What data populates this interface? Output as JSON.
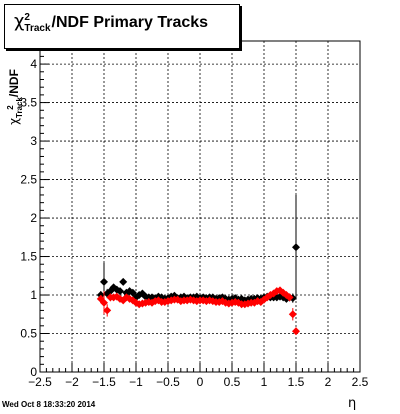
{
  "title": {
    "symbol": "χ",
    "sup": "2",
    "sub": "Track",
    "rest": "/NDF  Primary Tracks"
  },
  "ylabel": {
    "symbol": "χ",
    "sup": "2",
    "sub": "Track",
    "rest": "/NDF"
  },
  "xlabel": "η",
  "timestamp": "Wed Oct  8 18:33:20 2014",
  "colors": {
    "series_black": "#000000",
    "series_red": "#ff0000",
    "grid": "#000000"
  },
  "chart_data": {
    "type": "scatter",
    "xlim": [
      -2.5,
      2.5
    ],
    "ylim": [
      0,
      4.3
    ],
    "grid": true,
    "x_ticks": [
      "−2.5",
      "−2",
      "−1.5",
      "−1",
      "−0.5",
      "0",
      "0.5",
      "1",
      "1.5",
      "2",
      "2.5"
    ],
    "y_ticks": [
      "0",
      "0.5",
      "1",
      "1.5",
      "2",
      "2.5",
      "3",
      "3.5",
      "4"
    ],
    "series": [
      {
        "color": "#000000",
        "marker": "diamond",
        "x": [
          -1.55,
          -1.5,
          -1.45,
          -1.4,
          -1.35,
          -1.3,
          -1.25,
          -1.2,
          -1.15,
          -1.1,
          -1.05,
          -1.0,
          -0.95,
          -0.9,
          -0.85,
          -0.8,
          -0.75,
          -0.7,
          -0.65,
          -0.6,
          -0.55,
          -0.5,
          -0.45,
          -0.4,
          -0.35,
          -0.3,
          -0.25,
          -0.2,
          -0.15,
          -0.1,
          -0.05,
          0.0,
          0.05,
          0.1,
          0.15,
          0.2,
          0.25,
          0.3,
          0.35,
          0.4,
          0.45,
          0.5,
          0.55,
          0.6,
          0.65,
          0.7,
          0.75,
          0.8,
          0.85,
          0.9,
          0.95,
          1.0,
          1.05,
          1.1,
          1.15,
          1.2,
          1.25,
          1.3,
          1.35,
          1.4,
          1.45,
          1.5
        ],
        "y": [
          1.0,
          1.17,
          1.02,
          1.05,
          1.1,
          1.07,
          1.05,
          1.17,
          1.03,
          1.05,
          1.03,
          0.97,
          1.0,
          1.02,
          0.98,
          0.97,
          0.97,
          0.96,
          0.98,
          0.97,
          0.95,
          0.96,
          0.98,
          0.99,
          0.96,
          0.97,
          0.98,
          0.96,
          0.97,
          0.97,
          0.98,
          0.96,
          0.97,
          0.96,
          0.97,
          0.97,
          0.95,
          0.96,
          0.97,
          0.95,
          0.94,
          0.95,
          0.96,
          0.94,
          0.95,
          0.93,
          0.94,
          0.95,
          0.95,
          0.96,
          0.95,
          0.97,
          0.98,
          0.97,
          0.97,
          0.97,
          0.98,
          0.97,
          0.95,
          0.97,
          0.96,
          1.62
        ],
        "err": [
          0.05,
          0.25,
          0.06,
          0.05,
          0.04,
          0.04,
          0.04,
          0.03,
          0.03,
          0.03,
          0.03,
          0.03,
          0.03,
          0.03,
          0.02,
          0.02,
          0.02,
          0.02,
          0.02,
          0.02,
          0.02,
          0.02,
          0.02,
          0.02,
          0.02,
          0.02,
          0.02,
          0.02,
          0.02,
          0.02,
          0.02,
          0.02,
          0.02,
          0.02,
          0.02,
          0.02,
          0.02,
          0.02,
          0.02,
          0.02,
          0.02,
          0.02,
          0.02,
          0.02,
          0.02,
          0.02,
          0.02,
          0.02,
          0.02,
          0.02,
          0.02,
          0.03,
          0.03,
          0.03,
          0.03,
          0.03,
          0.04,
          0.04,
          0.04,
          0.05,
          0.06,
          0.68
        ]
      },
      {
        "color": "#ff0000",
        "marker": "diamond",
        "x": [
          -1.55,
          -1.5,
          -1.45,
          -1.4,
          -1.35,
          -1.3,
          -1.25,
          -1.2,
          -1.15,
          -1.1,
          -1.05,
          -1.0,
          -0.95,
          -0.9,
          -0.85,
          -0.8,
          -0.75,
          -0.7,
          -0.65,
          -0.6,
          -0.55,
          -0.5,
          -0.45,
          -0.4,
          -0.35,
          -0.3,
          -0.25,
          -0.2,
          -0.15,
          -0.1,
          -0.05,
          0.0,
          0.05,
          0.1,
          0.15,
          0.2,
          0.25,
          0.3,
          0.35,
          0.4,
          0.45,
          0.5,
          0.55,
          0.6,
          0.65,
          0.7,
          0.75,
          0.8,
          0.85,
          0.9,
          0.95,
          1.0,
          1.05,
          1.1,
          1.15,
          1.2,
          1.25,
          1.3,
          1.35,
          1.4,
          1.45,
          1.5
        ],
        "y": [
          0.95,
          0.9,
          0.8,
          0.97,
          0.97,
          0.98,
          0.95,
          0.93,
          0.97,
          0.95,
          0.93,
          0.9,
          0.88,
          0.89,
          0.9,
          0.91,
          0.9,
          0.92,
          0.93,
          0.91,
          0.91,
          0.92,
          0.93,
          0.94,
          0.94,
          0.92,
          0.93,
          0.93,
          0.94,
          0.93,
          0.92,
          0.93,
          0.93,
          0.92,
          0.93,
          0.92,
          0.91,
          0.91,
          0.92,
          0.9,
          0.89,
          0.9,
          0.91,
          0.9,
          0.88,
          0.88,
          0.89,
          0.9,
          0.9,
          0.92,
          0.91,
          0.94,
          0.97,
          1.0,
          1.02,
          1.05,
          1.06,
          1.03,
          1.0,
          0.97,
          0.75,
          0.53
        ],
        "err": [
          0.05,
          0.15,
          0.08,
          0.05,
          0.04,
          0.04,
          0.04,
          0.03,
          0.03,
          0.03,
          0.03,
          0.03,
          0.03,
          0.03,
          0.02,
          0.02,
          0.02,
          0.02,
          0.02,
          0.02,
          0.02,
          0.02,
          0.02,
          0.02,
          0.02,
          0.02,
          0.02,
          0.02,
          0.02,
          0.02,
          0.02,
          0.02,
          0.02,
          0.02,
          0.02,
          0.02,
          0.02,
          0.02,
          0.02,
          0.02,
          0.02,
          0.02,
          0.02,
          0.02,
          0.02,
          0.02,
          0.02,
          0.02,
          0.02,
          0.02,
          0.02,
          0.03,
          0.03,
          0.03,
          0.03,
          0.03,
          0.04,
          0.04,
          0.04,
          0.05,
          0.08,
          0.05
        ]
      }
    ]
  }
}
